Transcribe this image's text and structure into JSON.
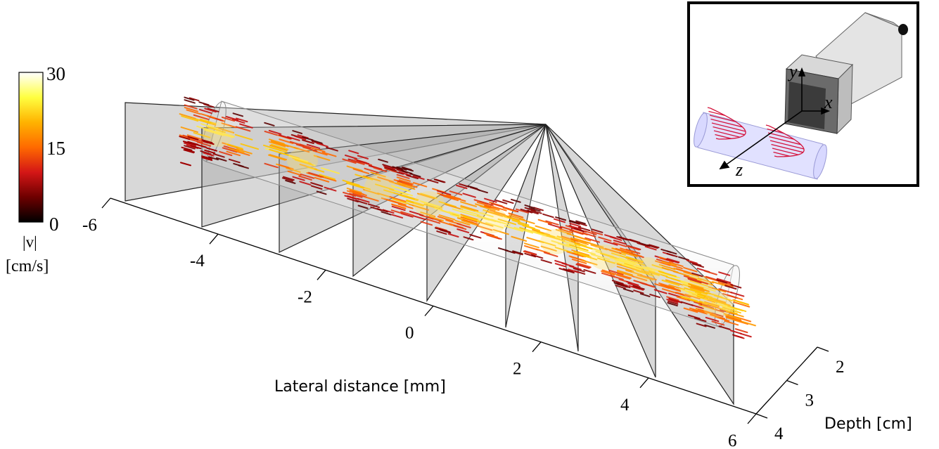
{
  "colorbar": {
    "labels": [
      "30",
      "15",
      "0"
    ],
    "quantity": "|v|",
    "unit": "[cm/s]",
    "stops": [
      "#000000",
      "#6e0000",
      "#d41616",
      "#ff6a00",
      "#ffb300",
      "#ffff40",
      "#ffffff"
    ]
  },
  "lateral_axis": {
    "ticks": [
      "-6",
      "-4",
      "-2",
      "0",
      "2",
      "4",
      "6"
    ],
    "title": "Lateral distance [mm]"
  },
  "depth_axis": {
    "ticks": [
      "2",
      "3",
      "4"
    ],
    "title": "Depth [cm]"
  },
  "inset": {
    "axes": [
      "y",
      "x",
      "z"
    ]
  }
}
